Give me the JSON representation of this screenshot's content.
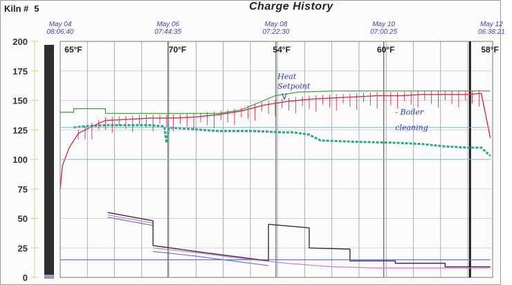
{
  "header": {
    "kiln_label": "Kiln #",
    "kiln_number": "5",
    "title": "Charge History"
  },
  "colors": {
    "dry_bulb": "#c8334f",
    "setpoint": "#3c9a3c",
    "wet_bulb": "#27a882",
    "grid": "#8a8a8a",
    "outside_line": "#7fb0dc",
    "mc_dark": "#333333",
    "mc_pink": "#d070c8",
    "mc_blue": "#6070c0",
    "ts_color": "#4a3fa8"
  },
  "chart_data": {
    "type": "line",
    "title": "Charge History",
    "ylim": [
      0,
      200
    ],
    "y_ticks": [
      "0",
      "25",
      "50",
      "75",
      "100",
      "125",
      "150",
      "175",
      "200"
    ],
    "x_range_hours": [
      0,
      191
    ],
    "timestamps": [
      {
        "date": "May 04",
        "time": "08:06:40",
        "hour": 0
      },
      {
        "date": "May 06",
        "time": "07:44:35",
        "hour": 47.6
      },
      {
        "date": "May 08",
        "time": "07:22:30",
        "hour": 95.3
      },
      {
        "date": "May 10",
        "time": "07:00:25",
        "hour": 142.9
      },
      {
        "date": "May 12",
        "time": "06:38:21",
        "hour": 190.5
      }
    ],
    "outside_temps": [
      {
        "label": "65°F",
        "hour": 1
      },
      {
        "label": "70°F",
        "hour": 47
      },
      {
        "label": "54°F",
        "hour": 93
      },
      {
        "label": "60°F",
        "hour": 139
      },
      {
        "label": "58°F",
        "hour": 185
      }
    ],
    "annotations": [
      {
        "text": "Heat",
        "hour": 96,
        "y": 168
      },
      {
        "text": "Setpoint",
        "hour": 96,
        "y": 160
      },
      {
        "text": "- Boiler",
        "hour": 148,
        "y": 138
      },
      {
        "text": "cleaning",
        "hour": 148,
        "y": 125
      }
    ],
    "series": [
      {
        "key": "setpoint",
        "x": [
          0,
          6,
          6,
          20,
          20,
          70,
          80,
          95,
          105,
          120,
          140,
          160,
          180,
          190
        ],
        "y": [
          140,
          140,
          143,
          143,
          139,
          139,
          142,
          154,
          157,
          158,
          158,
          158,
          158,
          158
        ]
      },
      {
        "key": "dry_bulb",
        "x": [
          0,
          1,
          4,
          8,
          14,
          20,
          30,
          40,
          50,
          60,
          70,
          80,
          90,
          100,
          110,
          120,
          130,
          140,
          150,
          160,
          170,
          180,
          186,
          190
        ],
        "y": [
          75,
          95,
          110,
          122,
          128,
          133,
          134,
          135,
          135,
          136,
          138,
          141,
          146,
          149,
          151,
          152,
          153,
          154,
          154,
          155,
          155,
          155,
          156,
          118
        ]
      },
      {
        "key": "wet_bulb",
        "x": [
          6,
          10,
          20,
          40,
          46,
          47,
          48,
          56,
          70,
          85,
          98,
          103,
          110,
          115,
          130,
          150,
          160,
          170,
          180,
          186,
          190
        ],
        "y": [
          127,
          128,
          129,
          129,
          128,
          114,
          127,
          126,
          124,
          124,
          123,
          123,
          121,
          116,
          115,
          114,
          113,
          111,
          110,
          110,
          103
        ]
      },
      {
        "key": "outside_line",
        "x": [
          0,
          190
        ],
        "y": [
          127,
          127
        ]
      },
      {
        "key": "outside_line",
        "x": [
          0,
          190
        ],
        "y": [
          100,
          100
        ]
      },
      {
        "key": "mc_blue",
        "x": [
          0,
          190
        ],
        "y": [
          15,
          15
        ]
      },
      {
        "key": "mc_dark",
        "x": [
          21,
          41
        ],
        "y": [
          55,
          48
        ]
      },
      {
        "key": "mc_pink",
        "x": [
          21,
          41
        ],
        "y": [
          53,
          46
        ]
      },
      {
        "key": "mc_blue",
        "x": [
          21,
          41
        ],
        "y": [
          51,
          44
        ]
      },
      {
        "key": "mc_dark",
        "x": [
          41,
          41,
          60,
          80,
          92
        ],
        "y": [
          48,
          27,
          22,
          17,
          14
        ]
      },
      {
        "key": "mc_pink",
        "x": [
          41,
          60,
          80,
          100,
          120,
          140,
          160,
          190
        ],
        "y": [
          25,
          21,
          16,
          12,
          9,
          8,
          8,
          8
        ]
      },
      {
        "key": "mc_blue",
        "x": [
          41,
          60,
          80,
          92
        ],
        "y": [
          22,
          18,
          13,
          10
        ]
      },
      {
        "key": "mc_dark",
        "x": [
          92,
          92,
          110,
          110,
          128,
          128,
          148,
          148,
          170,
          170,
          190
        ],
        "y": [
          14,
          45,
          42,
          25,
          24,
          14,
          14,
          12,
          12,
          9,
          9
        ]
      }
    ]
  }
}
